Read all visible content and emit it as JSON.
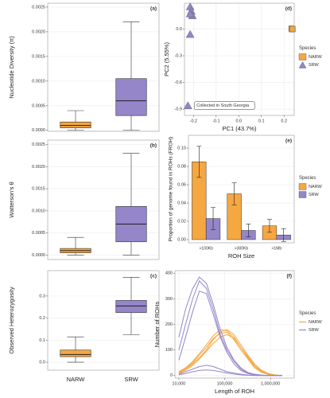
{
  "chart_data": [
    {
      "type": "box",
      "panel_label": "(a)",
      "y_label": "Nucleotide Diversity (π)",
      "ylim": [
        -2e-05,
        0.00258
      ],
      "yticks": [
        {
          "value": 0,
          "label": "0.0000"
        },
        {
          "value": 0.0005,
          "label": "0.0005"
        },
        {
          "value": 0.001,
          "label": "0.0010"
        },
        {
          "value": 0.0015,
          "label": "0.0015"
        },
        {
          "value": 0.002,
          "label": "0.0020"
        },
        {
          "value": 0.0025,
          "label": "0.0025"
        }
      ],
      "colors": [
        "#f5a742",
        "#9585c9"
      ],
      "boxes": [
        {
          "min": 0,
          "q1": 5e-05,
          "median": 0.0001,
          "q3": 0.00017,
          "max": 0.0004
        },
        {
          "min": 0,
          "q1": 0.0003,
          "median": 0.0006,
          "q3": 0.00105,
          "max": 0.0022
        }
      ],
      "grid": true
    },
    {
      "type": "box",
      "panel_label": "(b)",
      "y_label": "Watterson's θ",
      "ylim": [
        -0.0001,
        0.0026
      ],
      "yticks": [
        {
          "value": 0,
          "label": "0.0000"
        },
        {
          "value": 0.0005,
          "label": "0.0005"
        },
        {
          "value": 0.001,
          "label": "0.0010"
        },
        {
          "value": 0.0015,
          "label": "0.0015"
        },
        {
          "value": 0.002,
          "label": "0.0020"
        },
        {
          "value": 0.0025,
          "label": "0.0025"
        }
      ],
      "colors": [
        "#f5a742",
        "#9585c9"
      ],
      "boxes": [
        {
          "min": 0,
          "q1": 5e-05,
          "median": 0.0001,
          "q3": 0.00015,
          "max": 0.0004
        },
        {
          "min": 0,
          "q1": 0.0003,
          "median": 0.0007,
          "q3": 0.0011,
          "max": 0.0023
        }
      ],
      "grid": true
    },
    {
      "type": "box",
      "panel_label": "(c)",
      "y_label": "Observed Heterozygosity",
      "categories": [
        "NARW",
        "SRW"
      ],
      "ylim": [
        -0.036,
        0.415
      ],
      "yticks": [
        {
          "value": 0,
          "label": "0.0"
        },
        0.1,
        0.2,
        0.3
      ],
      "colors": [
        "#f5a742",
        "#9585c9"
      ],
      "boxes": [
        {
          "min": 0,
          "q1": 0.025,
          "median": 0.035,
          "q3": 0.055,
          "max": 0.115
        },
        {
          "min": 0.125,
          "q1": 0.225,
          "median": 0.255,
          "q3": 0.28,
          "max": 0.385
        }
      ],
      "grid": true
    },
    {
      "type": "scatter",
      "panel_label": "(d)",
      "x_label": "PC1 (43.7%)",
      "y_label": "PC2 (5.55%)",
      "xlim": [
        -0.24,
        0.245
      ],
      "ylim": [
        -0.97,
        0.29
      ],
      "xticks": [
        -0.2,
        -0.1,
        {
          "value": 0,
          "label": "0.0"
        },
        0.1,
        0.2
      ],
      "yticks": [
        -0.9,
        -0.6,
        -0.3,
        {
          "value": 0,
          "label": "0.0"
        }
      ],
      "legend_title": "Species",
      "series": [
        {
          "name": "NARW",
          "color": "#f5a742",
          "marker": "square",
          "x": [
            0.233,
            0.236,
            0.238
          ],
          "y": [
            0.005,
            -0.003,
            0
          ]
        },
        {
          "name": "SRW",
          "color": "#9585c9",
          "marker": "triangle",
          "x": [
            -0.215,
            -0.21,
            -0.205,
            -0.215,
            -0.215,
            -0.225
          ],
          "y": [
            0.25,
            0.2,
            0.15,
            0.17,
            -0.06,
            -0.86
          ]
        }
      ],
      "annotation": "Collected in South Georgia",
      "grid": true
    },
    {
      "type": "bar",
      "panel_label": "(e)",
      "x_label": "ROH Size",
      "y_label": "Proportion of genome found in ROHs (FROH)",
      "categories": [
        ">100Kb",
        ">300Kb",
        ">1Mb"
      ],
      "ylim": [
        -0.0035,
        0.114
      ],
      "yticks": [
        {
          "value": 0,
          "label": "0.00"
        },
        {
          "value": 0.02,
          "label": "0.02"
        },
        {
          "value": 0.04,
          "label": "0.04"
        },
        {
          "value": 0.06,
          "label": "0.06"
        },
        {
          "value": 0.08,
          "label": "0.08"
        },
        {
          "value": 0.1,
          "label": "0.10"
        }
      ],
      "legend_title": "Species",
      "series": [
        {
          "name": "NARW",
          "color": "#f5a742",
          "values": [
            0.085,
            0.05,
            0.015
          ],
          "errors": [
            0.017,
            0.012,
            0.007
          ]
        },
        {
          "name": "SRW",
          "color": "#9585c9",
          "values": [
            0.023,
            0.01,
            0.005
          ],
          "errors": [
            0.012,
            0.007,
            0.007
          ]
        }
      ],
      "grid": true
    },
    {
      "type": "line",
      "panel_label": "(f)",
      "x_label": "Length of ROH",
      "y_label": "Number of ROHs",
      "log_x": true,
      "xlim": [
        8200,
        3300000
      ],
      "ylim": [
        -10,
        410
      ],
      "xticks": [
        {
          "value": 10000,
          "label": "10,000"
        },
        {
          "value": 100000,
          "label": "100,000"
        },
        {
          "value": 1000000,
          "label": "1,000,000"
        }
      ],
      "yticks": [
        0,
        100,
        200,
        300,
        400
      ],
      "legend_title": "Species",
      "x": [
        10000,
        14000,
        20000,
        28000,
        40000,
        56000,
        80000,
        112000,
        160000,
        225000,
        320000,
        450000,
        640000,
        900000,
        1280000,
        1800000
      ],
      "series": [
        {
          "name": "NARW",
          "color": "#f5a742",
          "lines": [
            [
              10,
              25,
              45,
              70,
              100,
              140,
              170,
              180,
              160,
              120,
              80,
              45,
              20,
              8,
              2,
              0
            ],
            [
              15,
              30,
              55,
              85,
              120,
              155,
              180,
              175,
              150,
              110,
              70,
              35,
              15,
              5,
              1,
              0
            ],
            [
              8,
              20,
              40,
              65,
              95,
              125,
              150,
              160,
              145,
              110,
              75,
              40,
              18,
              6,
              2,
              0
            ],
            [
              12,
              28,
              50,
              80,
              110,
              145,
              165,
              170,
              140,
              100,
              65,
              30,
              12,
              4,
              1,
              0
            ]
          ]
        },
        {
          "name": "SRW",
          "color": "#9585c9",
          "lines": [
            [
              150,
              260,
              340,
              385,
              360,
              280,
              180,
              110,
              60,
              30,
              12,
              5,
              2,
              0,
              0,
              0
            ],
            [
              100,
              200,
              300,
              370,
              340,
              260,
              160,
              100,
              55,
              25,
              10,
              4,
              1,
              0,
              0,
              0
            ],
            [
              60,
              150,
              250,
              330,
              320,
              240,
              150,
              90,
              45,
              20,
              8,
              3,
              1,
              0,
              0,
              0
            ],
            [
              5,
              15,
              25,
              35,
              40,
              35,
              25,
              15,
              10,
              5,
              2,
              1,
              0,
              0,
              0,
              0
            ],
            [
              3,
              8,
              15,
              20,
              22,
              20,
              15,
              10,
              6,
              3,
              1,
              0,
              0,
              0,
              0,
              0
            ]
          ]
        }
      ],
      "grid": true
    }
  ]
}
